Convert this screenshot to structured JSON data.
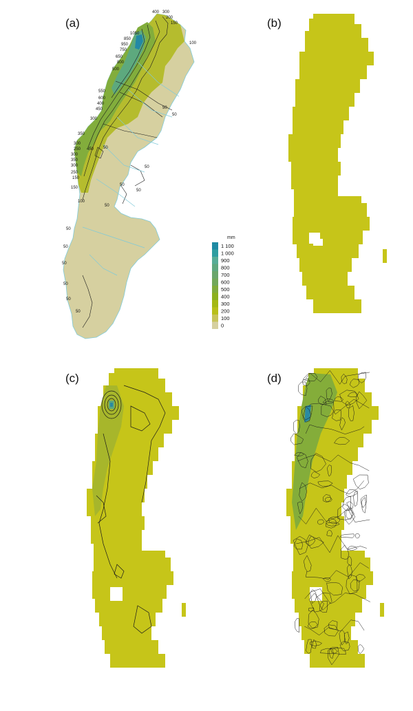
{
  "panels": {
    "a": {
      "label": "(a)"
    },
    "b": {
      "label": "(b)"
    },
    "c": {
      "label": "(c)"
    },
    "d": {
      "label": "(d)"
    }
  },
  "legend": {
    "unit": "mm",
    "items": [
      {
        "label": "1 100",
        "color": "#1e8aa3"
      },
      {
        "label": "1 000",
        "color": "#2f9ea0"
      },
      {
        "label": "900",
        "color": "#57ad97"
      },
      {
        "label": "800",
        "color": "#5fa880"
      },
      {
        "label": "700",
        "color": "#6aa66c"
      },
      {
        "label": "600",
        "color": "#72a85a"
      },
      {
        "label": "500",
        "color": "#80ab3c"
      },
      {
        "label": "400",
        "color": "#8cb01e"
      },
      {
        "label": "300",
        "color": "#a4b815"
      },
      {
        "label": "200",
        "color": "#b8bf1a"
      },
      {
        "label": "100",
        "color": "#c8c45a"
      },
      {
        "label": "0",
        "color": "#d6d0a0"
      }
    ]
  },
  "contour_labels_a": [
    "400",
    "300",
    "200",
    "150",
    "1050",
    "850",
    "950",
    "750",
    "100",
    "650",
    "800",
    "500",
    "550",
    "600",
    "400",
    "450",
    "300",
    "350",
    "450",
    "300",
    "250",
    "300",
    "350",
    "300",
    "250",
    "150",
    "150",
    "100",
    "50",
    "50",
    "50",
    "50",
    "50",
    "50",
    "50",
    "50",
    "50",
    "50",
    "50",
    "50",
    "50"
  ],
  "colors": {
    "grid_fill": "#c6c519",
    "a_base": "#d6d0a0",
    "river": "#7fcad9",
    "contour": "#1a1a1a"
  }
}
